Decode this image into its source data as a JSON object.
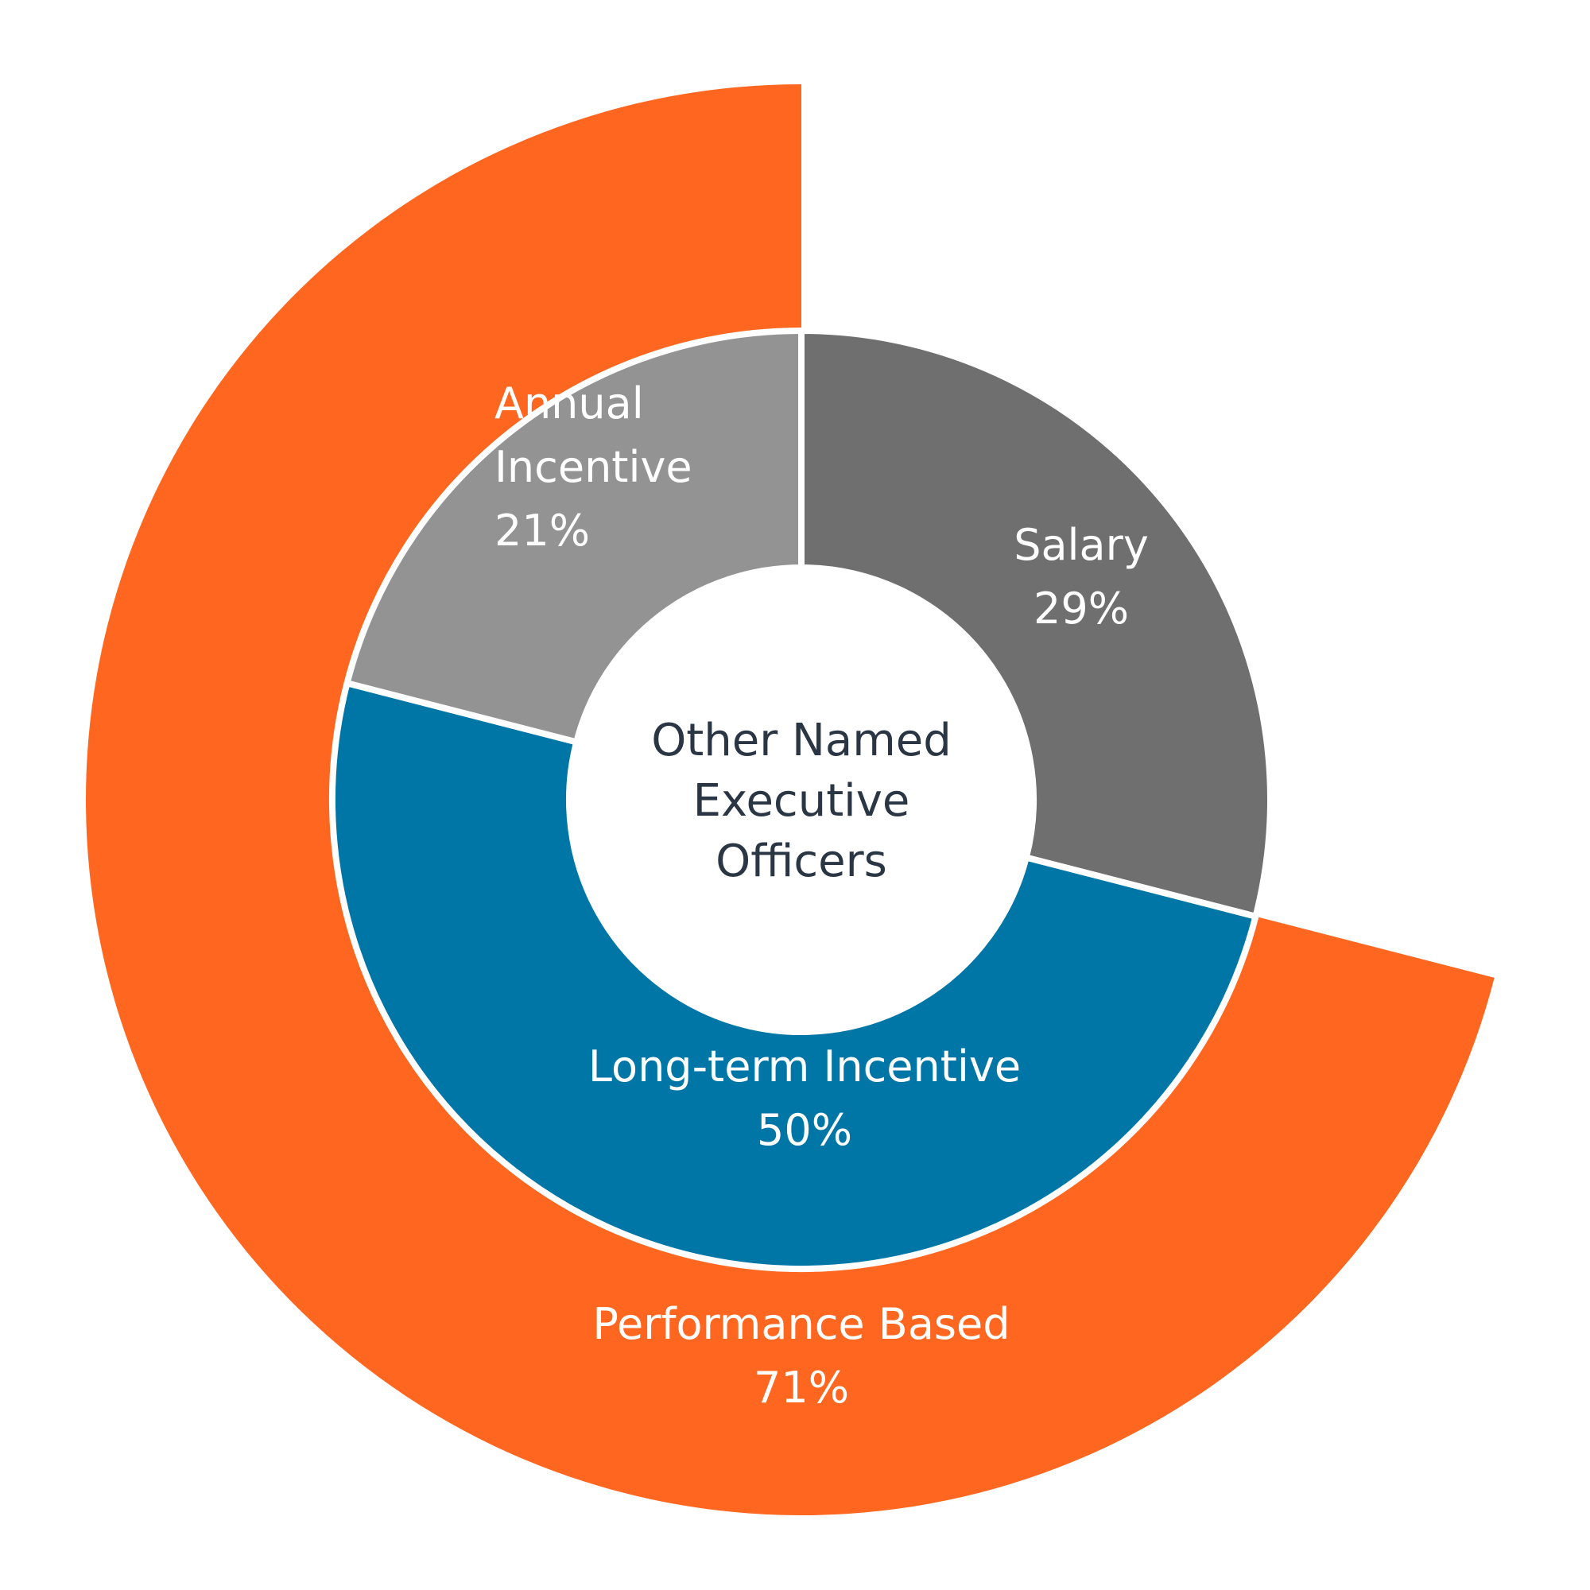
{
  "chart_data": {
    "type": "pie",
    "center_label": [
      "Other Named",
      "Executive",
      "Officers"
    ],
    "inner_ring": {
      "segments": [
        {
          "name": "Salary",
          "label_lines": [
            "Salary",
            "29%"
          ],
          "value": 29,
          "color": "#6f6f6f"
        },
        {
          "name": "Long-term Incentive",
          "label_lines": [
            "Long-term Incentive",
            "50%"
          ],
          "value": 50,
          "color": "#0076a6"
        },
        {
          "name": "Annual Incentive",
          "label_lines": [
            "Annual",
            "Incentive",
            "21%"
          ],
          "value": 21,
          "color": "#939393"
        }
      ]
    },
    "outer_ring": {
      "segments": [
        {
          "name": "Performance Based",
          "label_lines": [
            "Performance Based",
            "71%"
          ],
          "value": 71,
          "color": "#ff6720"
        }
      ]
    }
  }
}
